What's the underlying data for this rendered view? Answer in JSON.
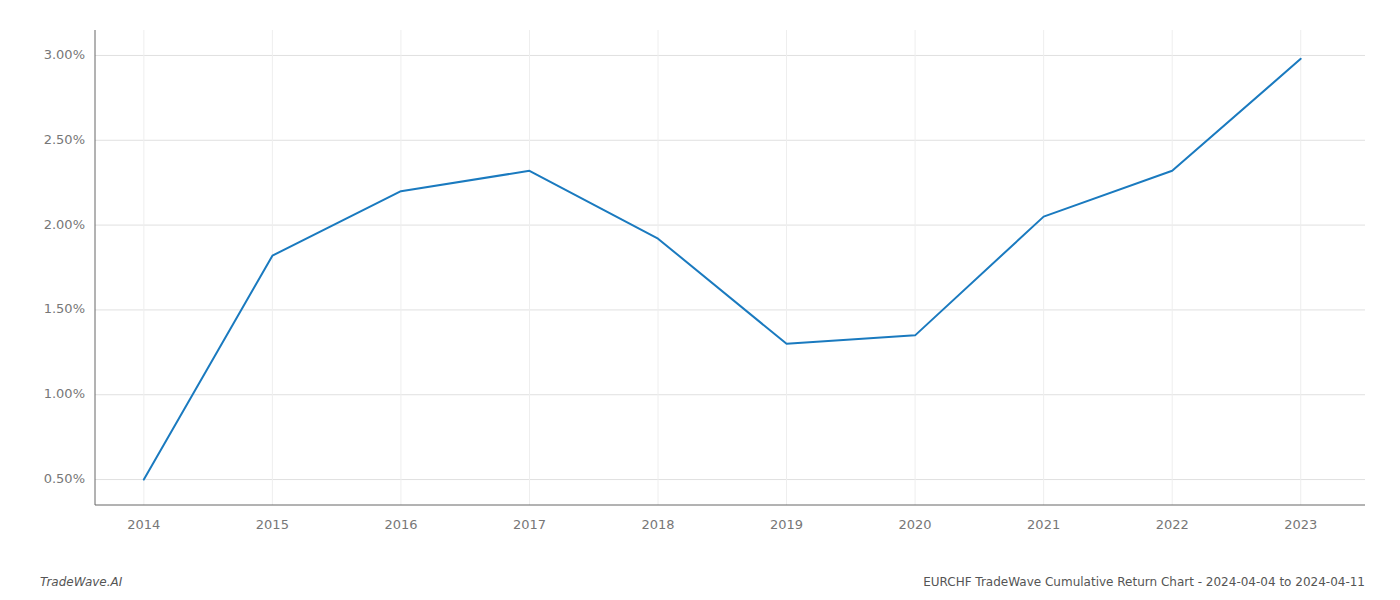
{
  "chart_data": {
    "type": "line",
    "title": "EURCHF TradeWave Cumulative Return Chart - 2024-04-04 to 2024-04-11",
    "annotations": [
      "TradeWave.AI"
    ],
    "x": [
      2014,
      2015,
      2016,
      2017,
      2018,
      2019,
      2020,
      2021,
      2022,
      2023
    ],
    "values": [
      0.005,
      0.0182,
      0.022,
      0.0232,
      0.0192,
      0.013,
      0.0135,
      0.0205,
      0.0232,
      0.0298
    ],
    "color": "#1a7abf",
    "xlim": [
      2013.62,
      2023.5
    ],
    "xticks": [
      2014,
      2015,
      2016,
      2017,
      2018,
      2019,
      2020,
      2021,
      2022,
      2023
    ],
    "ylim": [
      0.0035,
      0.0315
    ],
    "yticks": [
      {
        "value": 0.005,
        "label": "0.50%"
      },
      {
        "value": 0.01,
        "label": "1.00%"
      },
      {
        "value": 0.015,
        "label": "1.50%"
      },
      {
        "value": 0.02,
        "label": "2.00%"
      },
      {
        "value": 0.025,
        "label": "2.50%"
      },
      {
        "value": 0.03,
        "label": "3.00%"
      }
    ],
    "grid": true
  }
}
